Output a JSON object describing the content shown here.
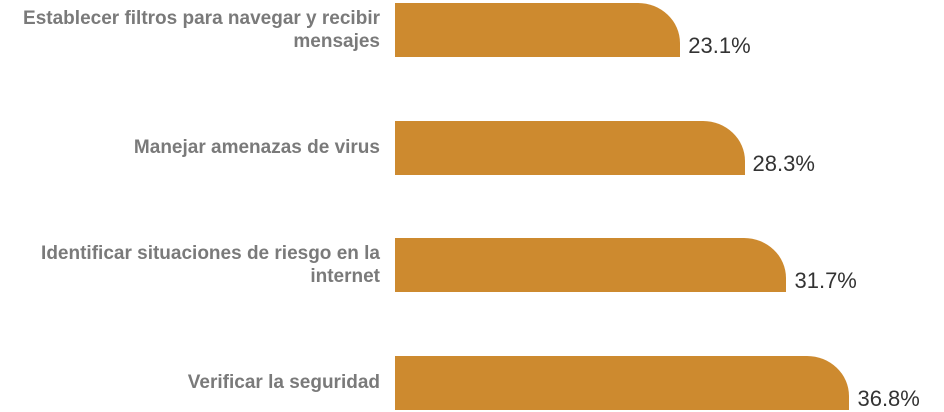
{
  "chart_data": {
    "type": "bar",
    "orientation": "horizontal",
    "categories": [
      "Establecer filtros para navegar y recibir mensajes",
      "Manejar amenazas de virus",
      "Identificar situaciones de riesgo en la internet",
      "Verificar la seguridad"
    ],
    "values": [
      23.1,
      28.3,
      31.7,
      36.8
    ],
    "value_labels": [
      "23.1%",
      "28.3%",
      "31.7%",
      "36.8%"
    ],
    "color": "#cd8a2f"
  }
}
